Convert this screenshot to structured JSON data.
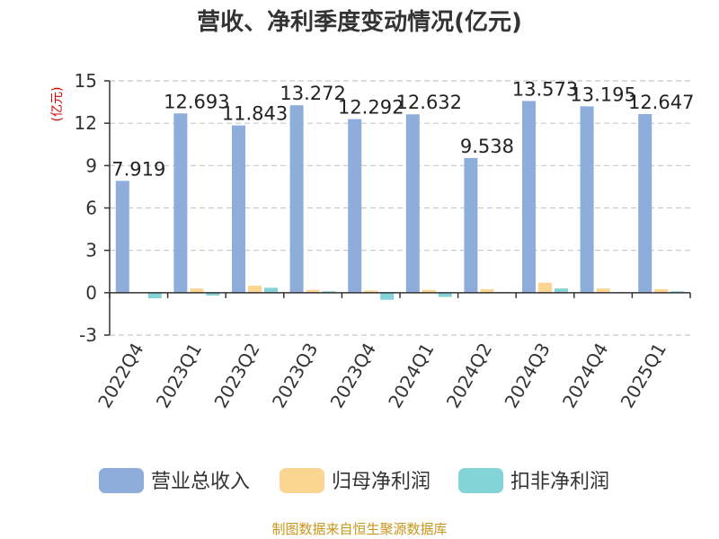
{
  "chart_data": {
    "type": "bar",
    "title": "营收、净利季度变动情况(亿元)",
    "ylabel": "(亿元)",
    "categories": [
      "2022Q4",
      "2023Q1",
      "2023Q2",
      "2023Q3",
      "2023Q4",
      "2024Q1",
      "2024Q2",
      "2024Q3",
      "2024Q4",
      "2025Q1"
    ],
    "series": [
      {
        "name": "营业总收入",
        "color": "#8eaddb",
        "values": [
          7.919,
          12.693,
          11.843,
          13.272,
          12.292,
          12.632,
          9.538,
          13.573,
          13.195,
          12.647
        ],
        "labels": [
          "7.919",
          "12.693",
          "11.843",
          "13.272",
          "12.292",
          "12.632",
          "9.538",
          "13.573",
          "13.195",
          "12.647"
        ]
      },
      {
        "name": "归母净利润",
        "color": "#fcd593",
        "values": [
          0.02,
          0.3,
          0.5,
          0.2,
          0.15,
          0.2,
          0.25,
          0.7,
          0.3,
          0.25
        ]
      },
      {
        "name": "扣非净利润",
        "color": "#84d3d6",
        "values": [
          -0.4,
          -0.2,
          0.35,
          0.1,
          -0.5,
          -0.3,
          0.05,
          0.3,
          0.05,
          0.1
        ]
      }
    ],
    "ylim": [
      -3,
      15
    ],
    "yticks": [
      "15",
      "12",
      "9",
      "6",
      "3",
      "0",
      "-3"
    ],
    "ytick_values": [
      15,
      12,
      9,
      6,
      3,
      0,
      -3
    ],
    "grid": true,
    "legend_position": "bottom"
  },
  "source": "制图数据来自恒生聚源数据库"
}
